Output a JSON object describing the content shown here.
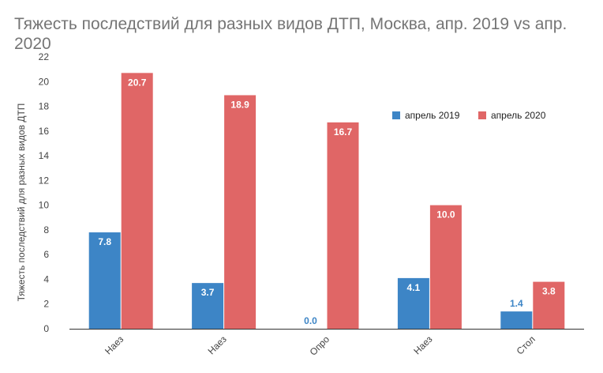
{
  "chart_data": {
    "type": "bar",
    "title": "Тяжесть последствий для разных видов ДТП, Москва, апр. 2019 vs апр. 2020",
    "xlabel": "",
    "ylabel": "Тяжесть последствий для разных видов ДТП",
    "categories": [
      "Наез",
      "Наез",
      "Опро",
      "Наез",
      "Стол"
    ],
    "series": [
      {
        "name": "апрель 2019",
        "color": "#3d85c6",
        "values": [
          7.8,
          3.7,
          0.0,
          4.1,
          1.4
        ]
      },
      {
        "name": "апрель 2020",
        "color": "#e06666",
        "values": [
          20.7,
          18.9,
          16.7,
          10.0,
          3.8
        ]
      }
    ],
    "ylim": [
      0,
      22
    ],
    "yticks": [
      0,
      2,
      4,
      6,
      8,
      10,
      12,
      14,
      16,
      18,
      20,
      22
    ],
    "data_labels": [
      [
        "7.8",
        "3.7",
        "0.0",
        "4.1",
        "1.4"
      ],
      [
        "20.7",
        "18.9",
        "16.7",
        "10.0",
        "3.8"
      ]
    ],
    "legend_position": "top-right",
    "grid": false
  }
}
